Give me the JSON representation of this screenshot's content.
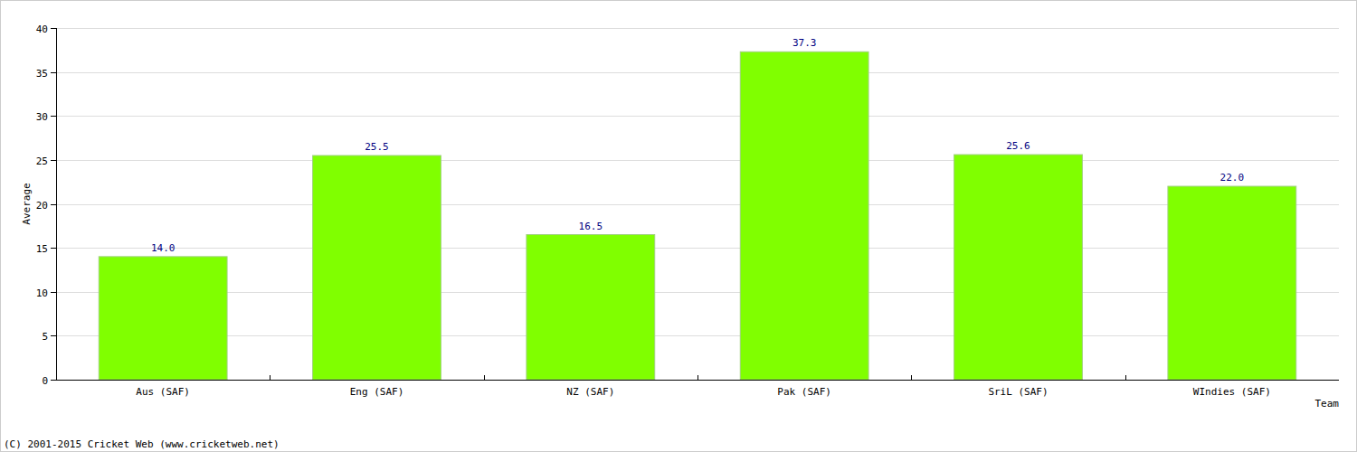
{
  "chart_data": {
    "type": "bar",
    "categories": [
      "Aus (SAF)",
      "Eng (SAF)",
      "NZ (SAF)",
      "Pak (SAF)",
      "SriL (SAF)",
      "WIndies (SAF)"
    ],
    "values": [
      14,
      25.5,
      16.5,
      37.3,
      25.6,
      22
    ],
    "value_labels": [
      "14.0",
      "25.5",
      "16.5",
      "37.3",
      "25.6",
      "22.0"
    ],
    "color": "#80ff00",
    "x_label": "Team",
    "y_label": "Average",
    "annotations": [
      "(C) 2001-2015 Cricket Web (www.cricketweb.net)"
    ],
    "ylim": [
      0,
      40
    ],
    "yticks": [
      0,
      5,
      10,
      15,
      20,
      25,
      30,
      35,
      40
    ],
    "grid": true,
    "data_labels": true
  }
}
